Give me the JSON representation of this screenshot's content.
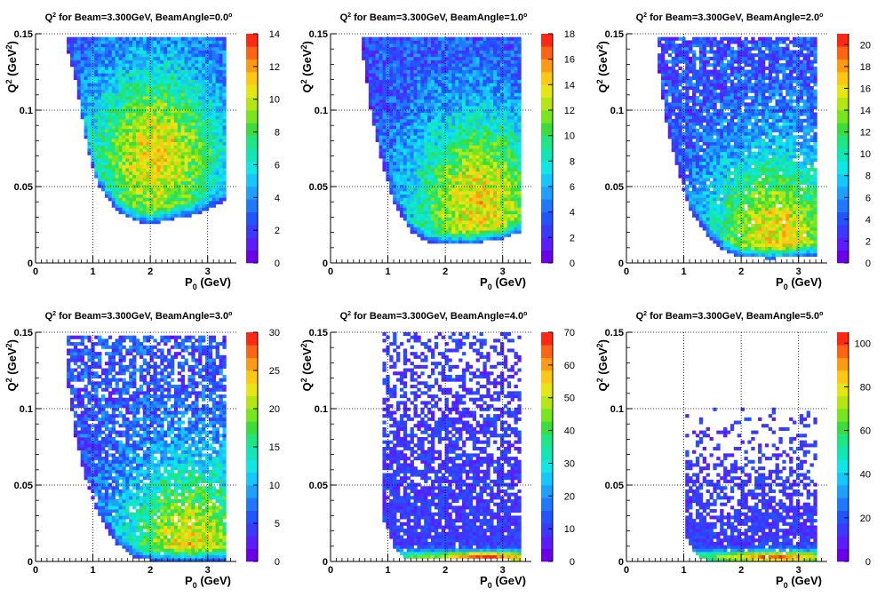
{
  "chart_data": [
    {
      "type": "heatmap",
      "title_prefix": "Q",
      "title_sup": "2",
      "title_rest": " for Beam=3.300GeV, BeamAngle=0.0",
      "title_deg": "o",
      "xlabel_main": "P",
      "xlabel_sub": "0",
      "xlabel_rest": " (GeV)",
      "ylabel_main": "Q",
      "ylabel_sup": "2",
      "ylabel_rest": " (GeV",
      "ylabel_sup2": "2",
      "ylabel_end": ")",
      "xlim": [
        0,
        3.5
      ],
      "ylim": [
        0,
        0.15
      ],
      "xticks": [
        "0",
        "1",
        "2",
        "3"
      ],
      "yticks": [
        "0",
        "0.05",
        "0.1",
        "0.15"
      ],
      "zmax": 14,
      "zticks": [
        "0",
        "2",
        "4",
        "6",
        "8",
        "10",
        "12",
        "14"
      ],
      "grid": true,
      "coverage": {
        "p_min": 0.55,
        "p_max": 3.3,
        "q2_max": 0.147,
        "lower_edge": [
          [
            0.55,
            0.14
          ],
          [
            0.7,
            0.12
          ],
          [
            0.9,
            0.075
          ],
          [
            1.1,
            0.05
          ],
          [
            1.4,
            0.035
          ],
          [
            1.7,
            0.028
          ],
          [
            2.0,
            0.025
          ],
          [
            2.3,
            0.028
          ],
          [
            2.6,
            0.03
          ],
          [
            2.9,
            0.033
          ],
          [
            3.3,
            0.04
          ]
        ],
        "peak_p": 2.1,
        "peak_q2": 0.07,
        "sparsity": 0.0
      }
    },
    {
      "type": "heatmap",
      "title_prefix": "Q",
      "title_sup": "2",
      "title_rest": " for Beam=3.300GeV, BeamAngle=1.0",
      "title_deg": "o",
      "xlabel_main": "P",
      "xlabel_sub": "0",
      "xlabel_rest": " (GeV)",
      "ylabel_main": "Q",
      "ylabel_sup": "2",
      "ylabel_rest": " (GeV",
      "ylabel_sup2": "2",
      "ylabel_end": ")",
      "xlim": [
        0,
        3.5
      ],
      "ylim": [
        0,
        0.15
      ],
      "xticks": [
        "0",
        "1",
        "2",
        "3"
      ],
      "yticks": [
        "0",
        "0.05",
        "0.1",
        "0.15"
      ],
      "zmax": 18,
      "zticks": [
        "0",
        "2",
        "4",
        "6",
        "8",
        "10",
        "12",
        "14",
        "16",
        "18"
      ],
      "grid": true,
      "coverage": {
        "p_min": 0.55,
        "p_max": 3.3,
        "q2_max": 0.147,
        "lower_edge": [
          [
            0.55,
            0.14
          ],
          [
            0.7,
            0.1
          ],
          [
            0.9,
            0.065
          ],
          [
            1.1,
            0.04
          ],
          [
            1.4,
            0.02
          ],
          [
            1.7,
            0.014
          ],
          [
            2.0,
            0.012
          ],
          [
            2.5,
            0.013
          ],
          [
            3.0,
            0.016
          ],
          [
            3.3,
            0.02
          ]
        ],
        "peak_p": 2.6,
        "peak_q2": 0.04,
        "sparsity": 0.0
      }
    },
    {
      "type": "heatmap",
      "title_prefix": "Q",
      "title_sup": "2",
      "title_rest": " for Beam=3.300GeV, BeamAngle=2.0",
      "title_deg": "o",
      "xlabel_main": "P",
      "xlabel_sub": "0",
      "xlabel_rest": " (GeV)",
      "ylabel_main": "Q",
      "ylabel_sup": "2",
      "ylabel_rest": " (GeV",
      "ylabel_sup2": "2",
      "ylabel_end": ")",
      "xlim": [
        0,
        3.5
      ],
      "ylim": [
        0,
        0.15
      ],
      "xticks": [
        "0",
        "1",
        "2",
        "3"
      ],
      "yticks": [
        "0",
        "0.05",
        "0.1",
        "0.15"
      ],
      "zmax": 21,
      "zticks": [
        "0",
        "2",
        "4",
        "6",
        "8",
        "10",
        "12",
        "14",
        "16",
        "18",
        "20"
      ],
      "grid": true,
      "coverage": {
        "p_min": 0.55,
        "p_max": 3.3,
        "q2_max": 0.147,
        "lower_edge": [
          [
            0.55,
            0.13
          ],
          [
            0.7,
            0.09
          ],
          [
            0.9,
            0.06
          ],
          [
            1.1,
            0.035
          ],
          [
            1.4,
            0.018
          ],
          [
            1.7,
            0.008
          ],
          [
            2.0,
            0.004
          ],
          [
            2.5,
            0.003
          ],
          [
            3.0,
            0.004
          ],
          [
            3.3,
            0.005
          ]
        ],
        "peak_p": 2.6,
        "peak_q2": 0.015,
        "sparsity": 0.12
      }
    },
    {
      "type": "heatmap",
      "title_prefix": "Q",
      "title_sup": "2",
      "title_rest": " for Beam=3.300GeV, BeamAngle=3.0",
      "title_deg": "o",
      "xlabel_main": "P",
      "xlabel_sub": "0",
      "xlabel_rest": " (GeV)",
      "ylabel_main": "Q",
      "ylabel_sup": "2",
      "ylabel_rest": " (GeV",
      "ylabel_sup2": "2",
      "ylabel_end": ")",
      "xlim": [
        0,
        3.5
      ],
      "ylim": [
        0,
        0.15
      ],
      "xticks": [
        "0",
        "1",
        "2",
        "3"
      ],
      "yticks": [
        "0",
        "0.05",
        "0.1",
        "0.15"
      ],
      "zmax": 30,
      "zticks": [
        "0",
        "5",
        "10",
        "15",
        "20",
        "25",
        "30"
      ],
      "grid": true,
      "coverage": {
        "p_min": 0.55,
        "p_max": 3.3,
        "q2_max": 0.147,
        "lower_edge": [
          [
            0.55,
            0.12
          ],
          [
            0.7,
            0.08
          ],
          [
            0.9,
            0.05
          ],
          [
            1.1,
            0.03
          ],
          [
            1.4,
            0.012
          ],
          [
            1.7,
            0.003
          ],
          [
            2.0,
            0.001
          ],
          [
            3.3,
            0.001
          ]
        ],
        "peak_p": 2.7,
        "peak_q2": 0.006,
        "sparsity": 0.3
      }
    },
    {
      "type": "heatmap",
      "title_prefix": "Q",
      "title_sup": "2",
      "title_rest": " for Beam=3.300GeV, BeamAngle=4.0",
      "title_deg": "o",
      "xlabel_main": "P",
      "xlabel_sub": "0",
      "xlabel_rest": " (GeV)",
      "ylabel_main": "Q",
      "ylabel_sup": "2",
      "ylabel_rest": " (GeV",
      "ylabel_sup2": "2",
      "ylabel_end": ")",
      "xlim": [
        0,
        3.5
      ],
      "ylim": [
        0,
        0.15
      ],
      "xticks": [
        "0",
        "1",
        "2",
        "3"
      ],
      "yticks": [
        "0",
        "0.05",
        "0.1",
        "0.15"
      ],
      "zmax": 70,
      "zticks": [
        "0",
        "10",
        "20",
        "30",
        "40",
        "50",
        "60",
        "70"
      ],
      "grid": true,
      "coverage": {
        "p_min": 0.9,
        "p_max": 3.3,
        "q2_max": 0.15,
        "lower_edge": [
          [
            0.9,
            0.03
          ],
          [
            1.1,
            0.01
          ],
          [
            1.3,
            0.002
          ],
          [
            3.3,
            0.001
          ]
        ],
        "peak_p": 2.7,
        "peak_q2": 0.003,
        "sparsity": 0.55
      }
    },
    {
      "type": "heatmap",
      "title_prefix": "Q",
      "title_sup": "2",
      "title_rest": " for Beam=3.300GeV, BeamAngle=5.0",
      "title_deg": "o",
      "xlabel_main": "P",
      "xlabel_sub": "0",
      "xlabel_rest": " (GeV)",
      "ylabel_main": "Q",
      "ylabel_sup": "2",
      "ylabel_rest": " (GeV",
      "ylabel_sup2": "2",
      "ylabel_end": ")",
      "xlim": [
        0,
        3.5
      ],
      "ylim": [
        0,
        0.15
      ],
      "xticks": [
        "0",
        "1",
        "2",
        "3"
      ],
      "yticks": [
        "0",
        "0.05",
        "0.1",
        "0.15"
      ],
      "zmax": 105,
      "zticks": [
        "0",
        "20",
        "40",
        "60",
        "80",
        "100"
      ],
      "grid": true,
      "coverage": {
        "p_min": 1.0,
        "p_max": 3.3,
        "q2_max": 0.1,
        "lower_edge": [
          [
            1.0,
            0.02
          ],
          [
            1.2,
            0.005
          ],
          [
            1.4,
            0.001
          ],
          [
            3.3,
            0.001
          ]
        ],
        "peak_p": 2.6,
        "peak_q2": 0.003,
        "sparsity": 0.75
      }
    }
  ],
  "palette": [
    "#6a00e8",
    "#5a1dff",
    "#3a3aff",
    "#2255ff",
    "#1f78ff",
    "#1fa0ff",
    "#14c8ff",
    "#0fe6e6",
    "#12e6b4",
    "#1ee682",
    "#3cdc3c",
    "#78e61e",
    "#b4e614",
    "#e6e614",
    "#ffc814",
    "#ff9a14",
    "#ff6414",
    "#ff2814"
  ]
}
